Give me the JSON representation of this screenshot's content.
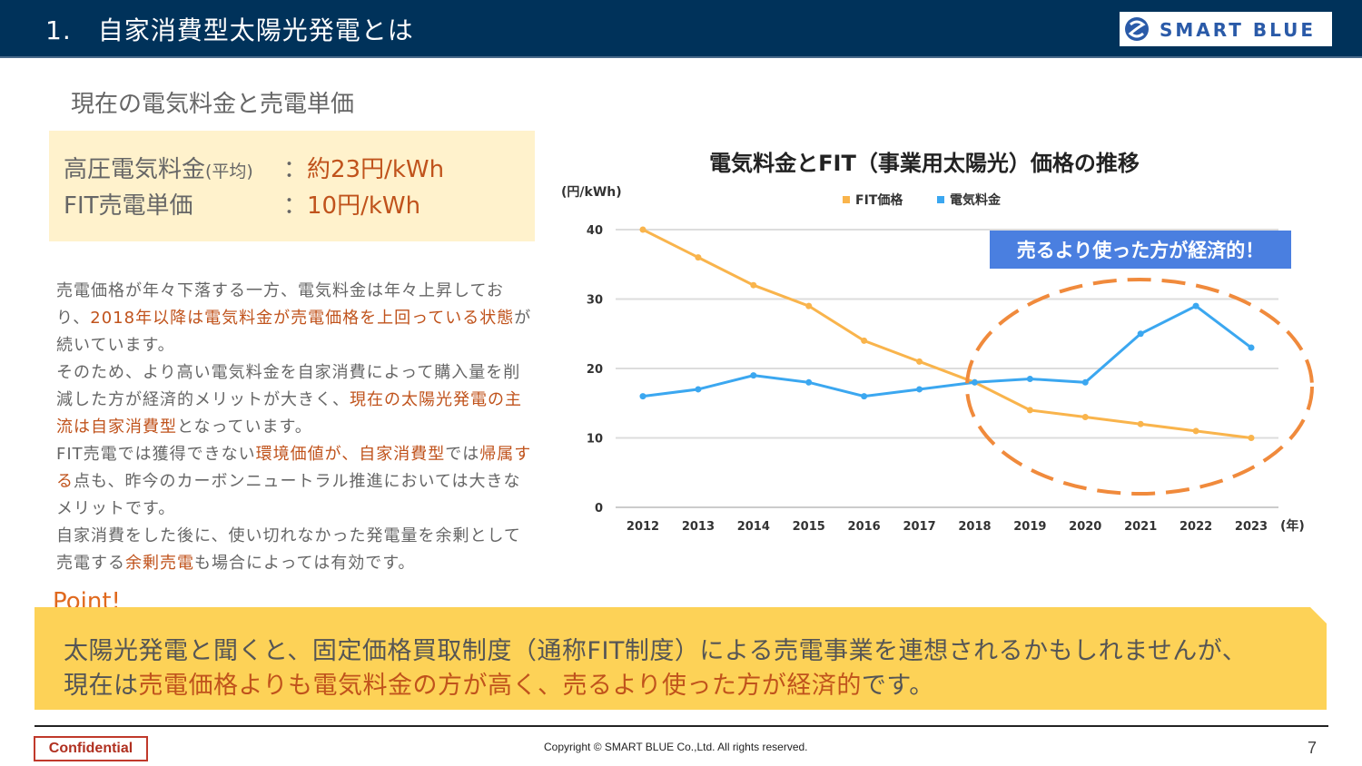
{
  "header": {
    "title": "1.　自家消費型太陽光発電とは",
    "logo_text": "SMART BLUE",
    "colors": {
      "bar": "#00325a",
      "logo": "#2a5aa8"
    }
  },
  "subtitle": "現在の電気料金と売電単価",
  "price_box": {
    "row1_label": "高圧電気料金",
    "row1_small": "(平均)",
    "row1_sep": "：",
    "row1_value": "約23円/kWh",
    "row2_label": "FIT売電単価",
    "row2_sep": "：",
    "row2_value": "10円/kWh"
  },
  "body": {
    "p1_a": "売電価格が年々下落する一方、電気料金は年々上昇しており、",
    "p1_hl": "2018年以降は電気料金が売電価格を上回っている状態",
    "p1_b": "が続いています。",
    "p2_a": "そのため、より高い電気料金を自家消費によって購入量を削減した方が経済的メリットが大きく、",
    "p2_hl": "現在の太陽光発電の主流は自家消費型",
    "p2_b": "となっています。",
    "p3_a": "FIT売電では獲得できない",
    "p3_hl1": "環境価値が、自家消費型",
    "p3_b": "では",
    "p3_hl2": "帰属する",
    "p3_c": "点も、昨今のカーボンニュートラル推進においては大きなメリットです。",
    "p4_a": "自家消費をした後に、使い切れなかった発電量を余剰として売電する",
    "p4_hl": "余剰売電",
    "p4_b": "も場合によっては有効です。"
  },
  "chart_data": {
    "type": "line",
    "title": "電気料金とFIT（事業用太陽光）価格の推移",
    "ylabel": "(円/kWh)",
    "xlabel": "(年)",
    "ylim": [
      0,
      40
    ],
    "yticks": [
      "0",
      "10",
      "20",
      "30",
      "40"
    ],
    "categories": [
      "2012",
      "2013",
      "2014",
      "2015",
      "2016",
      "2017",
      "2018",
      "2019",
      "2020",
      "2021",
      "2022",
      "2023"
    ],
    "series": [
      {
        "name": "FIT価格",
        "color": "#f9b44c",
        "values": [
          40,
          36,
          32,
          29,
          24,
          21,
          18,
          14,
          13,
          12,
          11,
          10
        ]
      },
      {
        "name": "電気料金",
        "color": "#3ba7f0",
        "values": [
          16,
          17,
          19,
          18,
          16,
          17,
          18,
          18.5,
          18,
          25,
          29,
          23
        ]
      }
    ],
    "grid": true,
    "legend": "top-center",
    "annotation": "売るより使った方が経済的！",
    "annotation_color": "#4a7fe0",
    "ellipse_color": "#f08a3c"
  },
  "point": {
    "label": "Point!",
    "line1": "太陽光発電と聞くと、固定価格買取制度（通称FIT制度）による売電事業を連想されるかもしれませんが、",
    "line2_a": "現在は",
    "line2_hl": "売電価格よりも電気料金の方が高く、売るより使った方が経済的",
    "line2_b": "です。",
    "color": "#fdd257"
  },
  "footer": {
    "confidential": "Confidential",
    "copyright": "Copyright © SMART BLUE Co.,Ltd. All rights reserved.",
    "page": "7"
  }
}
